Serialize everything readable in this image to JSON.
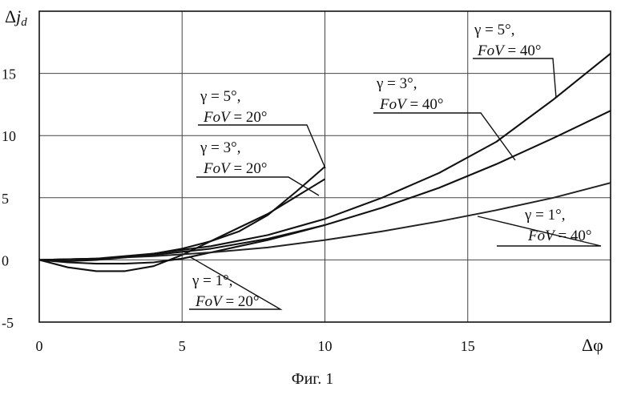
{
  "chart_data": {
    "type": "line",
    "xlabel": "Δφ",
    "ylabel": "Δj_d",
    "xlim": [
      0,
      20
    ],
    "ylim": [
      -5,
      20
    ],
    "x_ticks": [
      "0",
      "5",
      "10",
      "15"
    ],
    "y_ticks": [
      "-5",
      "0",
      "5",
      "10",
      "15"
    ],
    "grid": true,
    "series": [
      {
        "name": "γ = 1°, FoV = 20°",
        "x": [
          0,
          1,
          2,
          3,
          4,
          5,
          6,
          7,
          8,
          9,
          10
        ],
        "y": [
          0,
          -0.2,
          -0.3,
          -0.3,
          -0.2,
          0.1,
          0.6,
          1.1,
          1.6,
          2.2,
          2.8
        ]
      },
      {
        "name": "γ = 3°, FoV = 20°",
        "x": [
          0,
          1,
          2,
          3,
          4,
          5,
          6,
          7,
          8,
          9,
          10
        ],
        "y": [
          0,
          -0.6,
          -0.9,
          -0.9,
          -0.5,
          0.4,
          1.5,
          2.6,
          3.7,
          5.1,
          6.5
        ]
      },
      {
        "name": "γ = 5°, FoV = 20°",
        "x": [
          0,
          1,
          2,
          3,
          4,
          5,
          6,
          7,
          8,
          9,
          10
        ],
        "y": [
          0,
          -0.1,
          0,
          0.2,
          0.5,
          0.9,
          1.5,
          2.3,
          3.6,
          5.5,
          7.5
        ]
      },
      {
        "name": "γ = 1°, FoV = 40°",
        "x": [
          0,
          2,
          4,
          6,
          8,
          10,
          12,
          14,
          16,
          18,
          20
        ],
        "y": [
          0,
          0.1,
          0.3,
          0.6,
          1.0,
          1.6,
          2.3,
          3.1,
          4.0,
          5.0,
          6.2
        ]
      },
      {
        "name": "γ = 3°, FoV = 40°",
        "x": [
          0,
          2,
          4,
          6,
          8,
          10,
          12,
          14,
          16,
          18,
          20
        ],
        "y": [
          0,
          0.1,
          0.4,
          0.9,
          1.7,
          2.8,
          4.2,
          5.8,
          7.7,
          9.8,
          12.0
        ]
      },
      {
        "name": "γ = 5°, FoV = 40°",
        "x": [
          0,
          2,
          4,
          6,
          8,
          10,
          12,
          14,
          16,
          18,
          20
        ],
        "y": [
          0,
          0.1,
          0.5,
          1.1,
          2.0,
          3.3,
          5.0,
          7.0,
          9.5,
          12.9,
          16.6
        ]
      }
    ],
    "annotations": [
      {
        "line1": "γ = 5°,",
        "line2": "FoV = 20°"
      },
      {
        "line1": "γ = 3°,",
        "line2": "FoV = 20°"
      },
      {
        "line1": "γ = 1°,",
        "line2": "FoV = 20°"
      },
      {
        "line1": "γ = 5°,",
        "line2": "FoV = 40°"
      },
      {
        "line1": "γ = 3°,",
        "line2": "FoV = 40°"
      },
      {
        "line1": "γ = 1°,",
        "line2": "FoV = 40°"
      }
    ]
  },
  "caption": "Фиг. 1"
}
